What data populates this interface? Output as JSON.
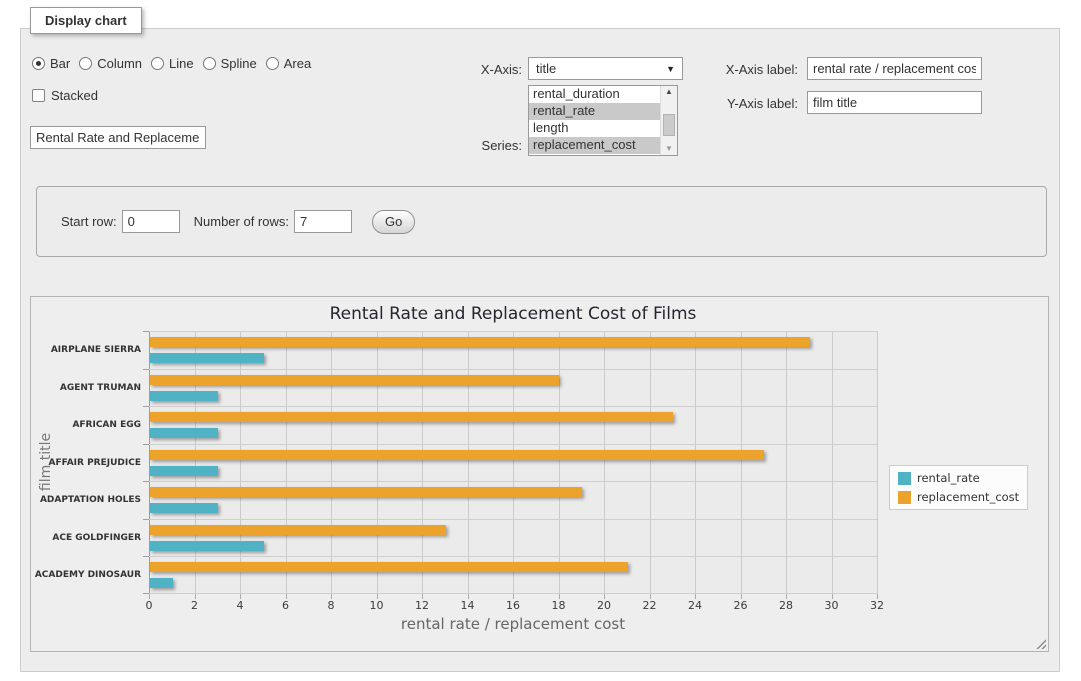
{
  "window": {
    "legend": "Display chart"
  },
  "controls": {
    "chart_types": [
      {
        "label": "Bar",
        "selected": true
      },
      {
        "label": "Column",
        "selected": false
      },
      {
        "label": "Line",
        "selected": false
      },
      {
        "label": "Spline",
        "selected": false
      },
      {
        "label": "Area",
        "selected": false
      }
    ],
    "stacked": {
      "label": "Stacked",
      "checked": false
    },
    "chart_title_input": {
      "value": "Rental Rate and Replacemer"
    },
    "x_axis": {
      "label": "X-Axis:",
      "selected": "title",
      "dropdown_icon": "▼"
    },
    "series": {
      "label": "Series:",
      "options": [
        {
          "label": "rental_duration",
          "selected": false
        },
        {
          "label": "rental_rate",
          "selected": true
        },
        {
          "label": "length",
          "selected": false
        },
        {
          "label": "replacement_cost",
          "selected": true
        }
      ],
      "scroll_up_icon": "▲",
      "scroll_down_icon": "▼"
    },
    "x_axis_label": {
      "label": "X-Axis label:",
      "value": "rental rate / replacement cost"
    },
    "y_axis_label": {
      "label": "Y-Axis label:",
      "value": "film title"
    }
  },
  "row_controls": {
    "start_row_label": "Start row:",
    "start_row_value": "0",
    "number_of_rows_label": "Number of rows:",
    "number_of_rows_value": "7",
    "go_label": "Go"
  },
  "chart_data": {
    "type": "bar",
    "title": "Rental Rate and Replacement Cost of Films",
    "categories": [
      "AIRPLANE SIERRA",
      "AGENT TRUMAN",
      "AFRICAN EGG",
      "AFFAIR PREJUDICE",
      "ADAPTATION HOLES",
      "ACE GOLDFINGER",
      "ACADEMY DINOSAUR"
    ],
    "series": [
      {
        "name": "rental_rate",
        "color": "#4FB3C5",
        "values": [
          4.99,
          2.99,
          2.99,
          2.99,
          2.99,
          4.99,
          0.99
        ]
      },
      {
        "name": "replacement_cost",
        "color": "#EDA22B",
        "values": [
          28.99,
          17.99,
          22.99,
          26.99,
          18.99,
          12.99,
          20.99
        ]
      }
    ],
    "xlabel": "rental rate / replacement cost",
    "ylabel": "film title",
    "xlim": [
      0,
      32
    ],
    "xticks": [
      0,
      2,
      4,
      6,
      8,
      10,
      12,
      14,
      16,
      18,
      20,
      22,
      24,
      26,
      28,
      30,
      32
    ],
    "legend_position": "right",
    "grid": true,
    "bar_group_draw_order": [
      "replacement_cost",
      "rental_rate"
    ],
    "plot_background": "#ebebeb",
    "gridline_color": "#cccccc"
  }
}
